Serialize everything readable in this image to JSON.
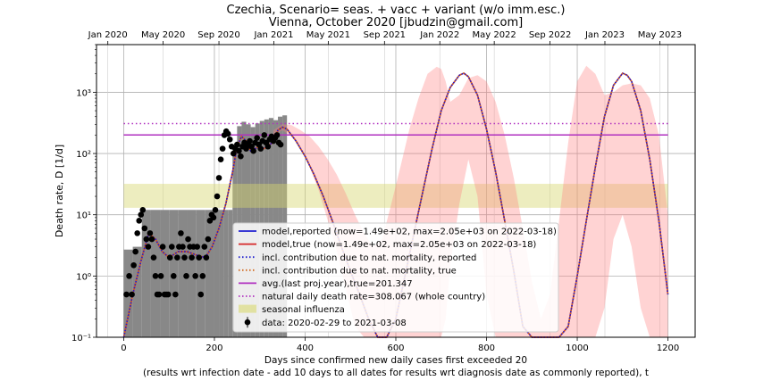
{
  "chart_data": {
    "type": "line",
    "title": "Czechia, Scenario= seas. + vacc + variant (w/o imm.esc.)",
    "subtitle": "Vienna, October 2020 [jbudzin@gmail.com]",
    "xlabel": "Days since confirmed new daily cases first exceeded 20",
    "xlabel2": "(results wrt infection date - add 10 days to all dates for results wrt diagnosis date as commonly reported), t",
    "ylabel": "Death rate, D [1/d]",
    "yscale": "log",
    "xlim": [
      -60,
      1260
    ],
    "ylim": [
      0.1,
      6000
    ],
    "x_ticks": [
      0,
      200,
      400,
      600,
      800,
      1000,
      1200
    ],
    "x_tick_labels": [
      "0",
      "200",
      "400",
      "600",
      "800",
      "1000",
      "1200"
    ],
    "y_ticks": [
      0.1,
      1,
      10,
      100,
      1000
    ],
    "y_tick_labels": [
      "10⁻¹",
      "10⁰",
      "10¹",
      "10²",
      "10³"
    ],
    "top_axis": {
      "ticks": [
        -35,
        87,
        210,
        331,
        451,
        575,
        697,
        817,
        940,
        1061,
        1182
      ],
      "labels": [
        "Jan 2020",
        "May 2020",
        "Sep 2020",
        "Jan 2021",
        "May 2021",
        "Sep 2021",
        "Jan 2022",
        "May 2022",
        "Sep 2022",
        "Jan 2023",
        "May 2023"
      ]
    },
    "grid": true,
    "legend_position": "lower-center",
    "legend": [
      {
        "label": "model,reported (now=1.49e+02, max=2.05e+03 on 2022-03-18)",
        "color": "#1f1fd0",
        "style": "solid"
      },
      {
        "label": "model,true (now=1.49e+02, max=2.05e+03 on 2022-03-18)",
        "color": "#d62728",
        "style": "solid"
      },
      {
        "label": "incl. contribution due to nat. mortality, reported",
        "color": "#1f1fd0",
        "style": "dotted"
      },
      {
        "label": "incl. contribution due to nat. mortality, true",
        "color": "#d2691e",
        "style": "dotted"
      },
      {
        "label": "avg.(last proj.year),true=201.347",
        "color": "#b030c0",
        "style": "solid"
      },
      {
        "label": "natural daily death rate=308.067 (whole country)",
        "color": "#b030c0",
        "style": "dotted"
      },
      {
        "label": "seasonal influenza",
        "color": "#d8d870",
        "style": "patch"
      },
      {
        "label": "data: 2020-02-29 to 2021-03-08",
        "color": "#000000",
        "style": "marker"
      }
    ],
    "reference_lines": {
      "avg_last_year": 201.347,
      "natural_death_rate": 308.067,
      "influenza_band": [
        13,
        32
      ],
      "x_range": [
        0,
        1200
      ]
    },
    "model_curve": {
      "x": [
        0,
        20,
        40,
        55,
        70,
        85,
        100,
        120,
        140,
        160,
        180,
        195,
        210,
        225,
        240,
        250,
        260,
        270,
        280,
        290,
        300,
        310,
        320,
        330,
        340,
        350,
        360,
        380,
        400,
        420,
        440,
        460,
        480,
        500,
        520,
        540,
        560,
        580,
        600,
        620,
        640,
        660,
        680,
        700,
        720,
        740,
        750,
        760,
        780,
        800,
        820,
        840,
        860,
        880,
        900,
        920,
        940,
        960,
        980,
        1000,
        1020,
        1040,
        1060,
        1080,
        1100,
        1110,
        1120,
        1140,
        1160,
        1180,
        1200
      ],
      "y": [
        0.1,
        0.5,
        2.0,
        5.0,
        4.0,
        2.5,
        2.0,
        2.5,
        2.5,
        2.2,
        2.0,
        3.0,
        6.0,
        15,
        50,
        130,
        190,
        160,
        110,
        120,
        135,
        120,
        140,
        150,
        240,
        270,
        250,
        160,
        90,
        45,
        20,
        8,
        3,
        1.2,
        0.5,
        0.2,
        0.09,
        0.09,
        0.2,
        1,
        5,
        25,
        120,
        500,
        1200,
        1900,
        2050,
        1800,
        900,
        250,
        50,
        8,
        1.2,
        0.15,
        0.09,
        0.09,
        0.09,
        0.09,
        0.15,
        1,
        8,
        60,
        400,
        1300,
        2050,
        1900,
        1500,
        500,
        80,
        8,
        0.5
      ]
    },
    "uncertainty_band": {
      "x": [
        330,
        350,
        370,
        390,
        410,
        430,
        450,
        470,
        490,
        510,
        530,
        550,
        570,
        590,
        610,
        630,
        650,
        670,
        690,
        700,
        710,
        720,
        740,
        760,
        780,
        800,
        820,
        840,
        860,
        880,
        900,
        920,
        940,
        960,
        980,
        1000,
        1020,
        1040,
        1060,
        1080,
        1100,
        1120,
        1140,
        1160,
        1180,
        1200
      ],
      "upper": [
        240,
        300,
        290,
        240,
        190,
        130,
        80,
        45,
        22,
        10,
        5,
        3,
        4,
        15,
        60,
        250,
        800,
        2000,
        2600,
        2400,
        1500,
        700,
        900,
        1700,
        1900,
        1500,
        700,
        200,
        40,
        6,
        0.8,
        0.2,
        0.5,
        8,
        150,
        1500,
        2700,
        2000,
        900,
        1000,
        1300,
        1400,
        1300,
        800,
        200,
        10
      ],
      "lower": [
        200,
        240,
        190,
        120,
        60,
        25,
        8,
        2.5,
        0.6,
        0.15,
        0.09,
        0.09,
        0.09,
        0.09,
        0.09,
        0.09,
        0.09,
        0.09,
        0.09,
        0.09,
        0.2,
        1.5,
        15,
        80,
        20,
        0.5,
        0.09,
        0.09,
        0.09,
        0.09,
        0.09,
        0.09,
        0.09,
        0.09,
        0.09,
        0.09,
        0.09,
        0.09,
        0.3,
        4,
        10,
        3,
        0.3,
        0.09,
        0.09,
        0.09
      ]
    },
    "data_points": {
      "x": [
        6,
        12,
        18,
        22,
        26,
        30,
        34,
        38,
        42,
        46,
        50,
        54,
        58,
        62,
        66,
        70,
        74,
        78,
        82,
        86,
        90,
        94,
        98,
        102,
        106,
        110,
        114,
        118,
        122,
        126,
        130,
        134,
        138,
        142,
        146,
        150,
        154,
        158,
        162,
        166,
        170,
        174,
        178,
        182,
        186,
        190,
        194,
        198,
        202,
        206,
        210,
        214,
        218,
        222,
        226,
        230,
        234,
        238,
        242,
        246,
        250,
        254,
        258,
        262,
        266,
        270,
        274,
        278,
        282,
        286,
        290,
        294,
        298,
        302,
        306,
        310,
        314,
        318,
        322,
        326,
        330,
        334,
        338,
        342,
        346
      ],
      "y": [
        0.5,
        1.0,
        0.5,
        1.5,
        2.5,
        5.0,
        8.0,
        10.0,
        12.0,
        6.0,
        4.0,
        3.0,
        5.0,
        4.0,
        2.0,
        1.0,
        0.5,
        0.5,
        1.0,
        3.0,
        0.5,
        0.5,
        0.5,
        2.0,
        3.0,
        1.0,
        0.5,
        2.0,
        3.0,
        5.0,
        3.0,
        2.0,
        1.0,
        4.0,
        3.0,
        2.0,
        3.0,
        1.0,
        3.0,
        2.0,
        0.5,
        1.0,
        3.0,
        2.0,
        4.0,
        8.0,
        10.0,
        9.0,
        12.0,
        20.0,
        40.0,
        80.0,
        120.0,
        200.0,
        230.0,
        210.0,
        170.0,
        130.0,
        100.0,
        120.0,
        140.0,
        110.0,
        90.0,
        130.0,
        150.0,
        120.0,
        140.0,
        160.0,
        130.0,
        110.0,
        150.0,
        180.0,
        140.0,
        120.0,
        160.0,
        200.0,
        150.0,
        130.0,
        170.0,
        190.0,
        160.0,
        180.0,
        200.0,
        150.0,
        140.0
      ]
    },
    "data_bars": {
      "x": [
        0,
        20,
        40,
        60,
        80,
        100,
        120,
        140,
        160,
        180,
        200,
        210,
        220,
        230,
        240,
        250,
        260,
        270,
        280,
        290,
        300,
        310,
        320,
        330,
        340,
        350
      ],
      "y": [
        2.7,
        3.0,
        12.0,
        12.0,
        12.0,
        12.0,
        12.0,
        12.0,
        12.0,
        12.0,
        12.0,
        12.0,
        12.0,
        12.0,
        100.0,
        280.0,
        330.0,
        300.0,
        270.0,
        310.0,
        340.0,
        360.0,
        380.0,
        350.0,
        400.0,
        420.0
      ]
    }
  }
}
